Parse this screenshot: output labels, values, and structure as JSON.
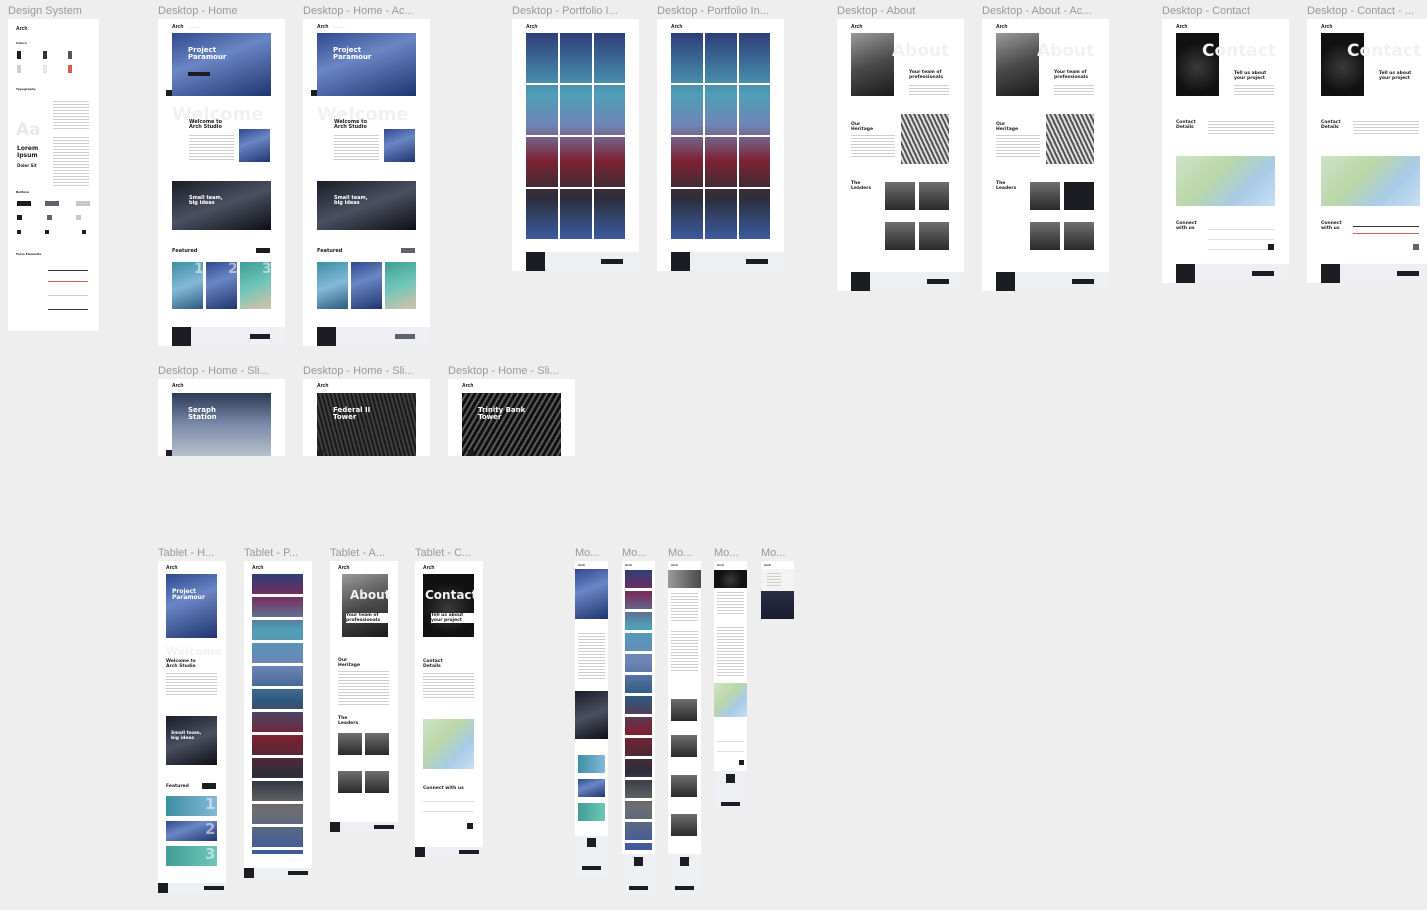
{
  "canvas": {
    "background": "#eeeeee"
  },
  "frames": [
    {
      "id": "design-system",
      "label": "Design System"
    },
    {
      "id": "desktop-home",
      "label": "Desktop - Home"
    },
    {
      "id": "desktop-home-active",
      "label": "Desktop - Home - Ac..."
    },
    {
      "id": "desktop-portfolio",
      "label": "Desktop  - Portfolio I..."
    },
    {
      "id": "desktop-portfolio-2",
      "label": "Desktop - Portfolio In..."
    },
    {
      "id": "desktop-about",
      "label": "Desktop - About"
    },
    {
      "id": "desktop-about-active",
      "label": "Desktop - About - Ac..."
    },
    {
      "id": "desktop-contact",
      "label": "Desktop - Contact"
    },
    {
      "id": "desktop-contact-2",
      "label": "Desktop - Contact - ..."
    },
    {
      "id": "slider-1",
      "label": "Desktop - Home - Sli..."
    },
    {
      "id": "slider-2",
      "label": "Desktop - Home - Sli..."
    },
    {
      "id": "slider-3",
      "label": "Desktop - Home - Sli..."
    },
    {
      "id": "tablet-home",
      "label": "Tablet - H..."
    },
    {
      "id": "tablet-portfolio",
      "label": "Tablet - P..."
    },
    {
      "id": "tablet-about",
      "label": "Tablet - A..."
    },
    {
      "id": "tablet-contact",
      "label": "Tablet - C..."
    },
    {
      "id": "mobile-1",
      "label": "Mo..."
    },
    {
      "id": "mobile-2",
      "label": "Mo..."
    },
    {
      "id": "mobile-3",
      "label": "Mo..."
    },
    {
      "id": "mobile-4",
      "label": "Mo..."
    },
    {
      "id": "mobile-5",
      "label": "Mo..."
    }
  ],
  "content": {
    "logo": "Arch",
    "hero_project": "Project Paramour",
    "welcome_ghost": "Welcome",
    "welcome_title": "Welcome to Arch Studio",
    "small_team": "Small team, big ideas",
    "featured": "Featured",
    "about_ghost": "About",
    "team_heading": "Your team of professionals",
    "heritage": "Our Heritage",
    "leaders": "The Leaders",
    "contact_ghost": "Contact",
    "project_heading": "Tell us about your project",
    "contact_details": "Contact Details",
    "connect": "Connect with us",
    "slide_1": "Seraph Station",
    "slide_2": "Federal II Tower",
    "slide_3": "Trinity Bank Tower",
    "ds_colors": "Colors",
    "ds_typography": "Typography",
    "ds_aa": "Aa",
    "ds_lorem": "Lorem Ipsum",
    "ds_dolor": "Dolor Sit",
    "ds_buttons": "Buttons",
    "ds_forms": "Form Elements",
    "num_1": "1",
    "num_2": "2",
    "num_3": "3"
  }
}
